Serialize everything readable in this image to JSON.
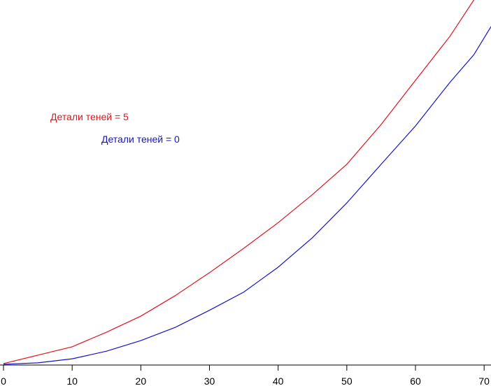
{
  "chart_data": {
    "type": "line",
    "x": [
      0,
      5,
      10,
      15,
      20,
      25,
      30,
      35,
      40,
      45,
      50,
      55,
      60,
      65,
      68.5,
      71
    ],
    "series": [
      {
        "name": "Детали теней = 5",
        "color": "#e0141e",
        "values": [
          0.4,
          2.7,
          5,
          9,
          13.4,
          19,
          25.3,
          32,
          39,
          46.7,
          55,
          65.9,
          78,
          90,
          100,
          null
        ]
      },
      {
        "name": "Детали теней = 0",
        "color": "#1414c8",
        "values": [
          0.2,
          0.6,
          1.7,
          3.8,
          6.7,
          10.3,
          15,
          20,
          26.8,
          34.9,
          44.4,
          55,
          65.5,
          77.4,
          85,
          92.7
        ]
      }
    ],
    "xlim": [
      0,
      71
    ],
    "xticks": [
      0,
      10,
      20,
      30,
      40,
      50,
      60,
      70
    ],
    "ylim": [
      0,
      100
    ]
  }
}
